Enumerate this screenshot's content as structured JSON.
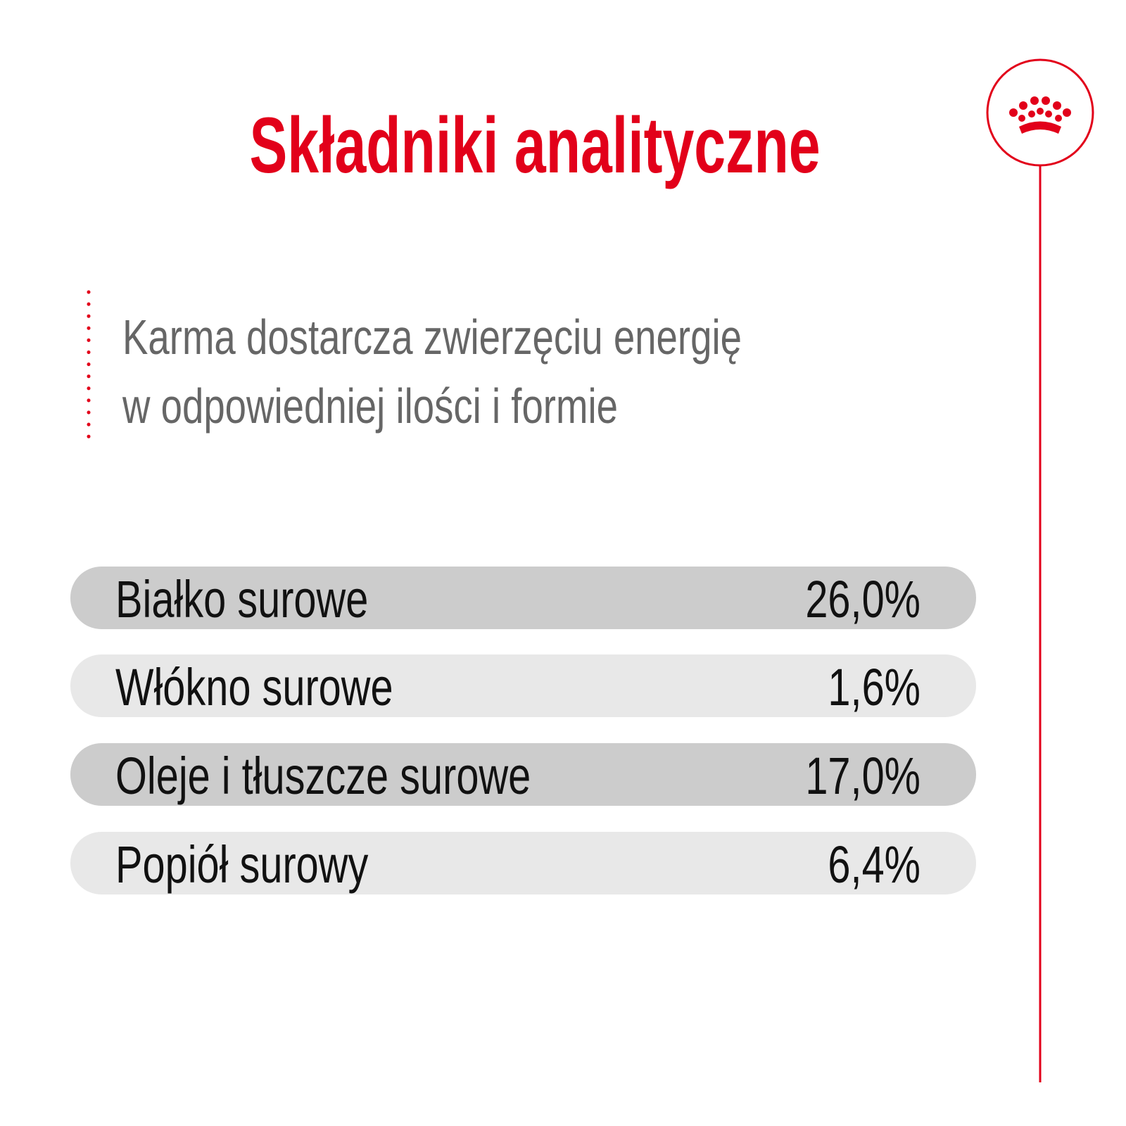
{
  "title": "Składniki analityczne",
  "intro": {
    "lines": [
      "Karma dostarcza zwierzęciu energię",
      "w odpowiedniej ilości i formie"
    ]
  },
  "table": {
    "rows": [
      [
        "Białko surowe",
        "26,0%"
      ],
      [
        "Włókno surowe",
        "1,6%"
      ],
      [
        "Oleje i tłuszcze surowe",
        "17,0%"
      ],
      [
        "Popiół surowy",
        "6,4%"
      ]
    ]
  }
}
